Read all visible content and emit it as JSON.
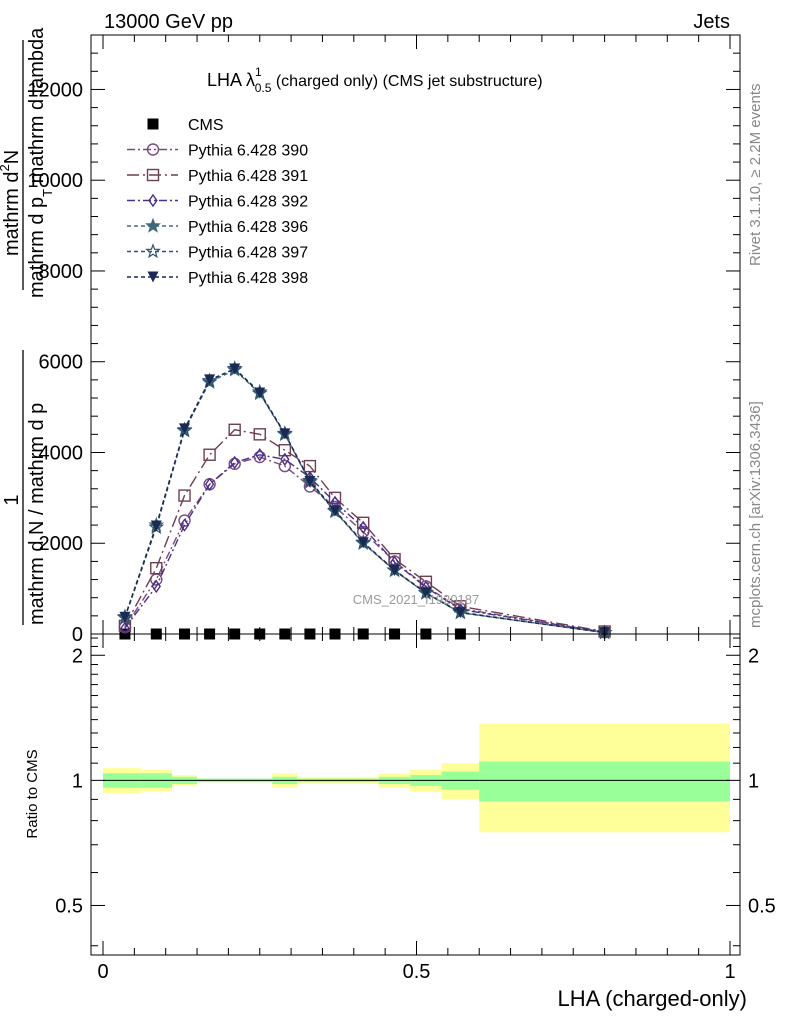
{
  "header": {
    "left": "13000 GeV pp",
    "right": "Jets"
  },
  "side_text": {
    "rivet": "Rivet 3.1.10, ≥ 2.2M events",
    "mcplots": "mcplots.cern.ch [arXiv:1306.3436]"
  },
  "watermark": "CMS_2021_I1920187",
  "chart_data": [
    {
      "type": "line",
      "panel": "main",
      "title": {
        "main": "LHA λ",
        "sup": "1",
        "sub": "0.5",
        "rest": " (charged only) (CMS jet substructure)"
      },
      "ylabel": "1 / mathrm d N / mathrm d p_T mathrm d^2N / mathrm d p_T mathrm d lambda",
      "ylabel_parts": {
        "numerator": "1",
        "denominator": "mathrm d N / mathrm d p",
        "big_top": "mathrm d",
        "big_top_sup": "2",
        "big_top_rest": "N",
        "big_bottom": "mathrm d p",
        "big_bottom_sub": "T",
        "big_bottom_rest": " mathrm d lambda"
      },
      "xlim": [
        0,
        1
      ],
      "ylim": [
        0,
        13200
      ],
      "yticks": [
        0,
        2000,
        4000,
        6000,
        8000,
        10000,
        12000
      ],
      "ytick_labels": [
        "0",
        "2000",
        "4000",
        "6000",
        "8000",
        "10000",
        "12000"
      ],
      "legend_position": "top-left",
      "series": [
        {
          "name": "CMS",
          "color": "#000000",
          "marker": "square-filled",
          "x": [
            0.035,
            0.085,
            0.13,
            0.17,
            0.21,
            0.25,
            0.29,
            0.33,
            0.37,
            0.415,
            0.465,
            0.515,
            0.57
          ],
          "values": [
            0,
            0,
            0,
            0,
            0,
            0,
            0,
            0,
            0,
            0,
            0,
            0,
            0
          ]
        },
        {
          "name": "Pythia 6.428 390",
          "color": "#7a4a82",
          "marker": "circle-open",
          "dash": "8,3,2,3",
          "x": [
            0.035,
            0.085,
            0.13,
            0.17,
            0.21,
            0.25,
            0.29,
            0.33,
            0.37,
            0.415,
            0.465,
            0.515,
            0.57,
            0.8
          ],
          "values": [
            150,
            1200,
            2500,
            3300,
            3750,
            3900,
            3700,
            3250,
            2800,
            2250,
            1600,
            1050,
            560,
            40
          ]
        },
        {
          "name": "Pythia 6.428 391",
          "color": "#6e3f4f",
          "marker": "square-open",
          "dash": "12,4,2,4",
          "x": [
            0.035,
            0.085,
            0.13,
            0.17,
            0.21,
            0.25,
            0.29,
            0.33,
            0.37,
            0.415,
            0.465,
            0.515,
            0.57,
            0.8
          ],
          "values": [
            180,
            1450,
            3050,
            3950,
            4500,
            4400,
            4050,
            3700,
            3000,
            2450,
            1650,
            1150,
            610,
            55
          ]
        },
        {
          "name": "Pythia 6.428 392",
          "color": "#4b2f8f",
          "marker": "diamond-open",
          "dash": "8,3,2,3",
          "x": [
            0.035,
            0.085,
            0.13,
            0.17,
            0.21,
            0.25,
            0.29,
            0.33,
            0.37,
            0.415,
            0.465,
            0.515,
            0.57,
            0.8
          ],
          "values": [
            130,
            1050,
            2400,
            3300,
            3780,
            3950,
            3850,
            3450,
            2900,
            2350,
            1580,
            1030,
            540,
            40
          ]
        },
        {
          "name": "Pythia 6.428 396",
          "color": "#3e6a78",
          "marker": "star-filled",
          "dash": "4,3",
          "x": [
            0.035,
            0.085,
            0.13,
            0.17,
            0.21,
            0.25,
            0.29,
            0.33,
            0.37,
            0.415,
            0.465,
            0.515,
            0.57,
            0.8
          ],
          "values": [
            380,
            2400,
            4500,
            5550,
            5820,
            5300,
            4400,
            3350,
            2700,
            2000,
            1400,
            900,
            470,
            30
          ]
        },
        {
          "name": "Pythia 6.428 397",
          "color": "#2e5470",
          "marker": "star-open",
          "dash": "4,3",
          "x": [
            0.035,
            0.085,
            0.13,
            0.17,
            0.21,
            0.25,
            0.29,
            0.33,
            0.37,
            0.415,
            0.465,
            0.515,
            0.57,
            0.8
          ],
          "values": [
            360,
            2350,
            4480,
            5580,
            5850,
            5330,
            4420,
            3380,
            2720,
            2020,
            1410,
            910,
            480,
            30
          ]
        },
        {
          "name": "Pythia 6.428 398",
          "color": "#1b2a55",
          "marker": "triangle-down-filled",
          "dash": "4,3",
          "x": [
            0.035,
            0.085,
            0.13,
            0.17,
            0.21,
            0.25,
            0.29,
            0.33,
            0.37,
            0.415,
            0.465,
            0.515,
            0.57,
            0.8
          ],
          "values": [
            370,
            2380,
            4520,
            5600,
            5840,
            5310,
            4410,
            3360,
            2710,
            2010,
            1400,
            900,
            470,
            30
          ]
        }
      ]
    },
    {
      "type": "area",
      "panel": "ratio",
      "ylabel": "Ratio to CMS",
      "xlabel": "LHA (charged-only)",
      "xlim": [
        0,
        1
      ],
      "ylim": [
        0.38,
        2.25
      ],
      "yscale": "log",
      "xticks": [
        0,
        0.5,
        1
      ],
      "xtick_labels": [
        "0",
        "0.5",
        "1"
      ],
      "yticks": [
        0.5,
        1,
        2
      ],
      "ytick_labels": [
        "0.5",
        "1",
        "2"
      ],
      "reference_line": 1,
      "bands": {
        "edges": [
          0,
          0.06,
          0.11,
          0.15,
          0.19,
          0.23,
          0.27,
          0.31,
          0.35,
          0.39,
          0.44,
          0.49,
          0.54,
          0.6,
          1
        ],
        "inner_color": "#99ff99",
        "outer_color": "#ffff99",
        "inner_low": [
          0.96,
          0.96,
          0.98,
          0.99,
          0.99,
          0.99,
          0.98,
          0.99,
          0.99,
          0.99,
          0.98,
          0.97,
          0.95,
          0.89
        ],
        "inner_high": [
          1.04,
          1.04,
          1.02,
          1.01,
          1.01,
          1.01,
          1.02,
          1.01,
          1.01,
          1.01,
          1.02,
          1.03,
          1.05,
          1.11
        ],
        "outer_low": [
          0.93,
          0.94,
          0.97,
          0.99,
          0.99,
          0.99,
          0.96,
          0.98,
          0.98,
          0.98,
          0.96,
          0.94,
          0.9,
          0.75
        ],
        "outer_high": [
          1.07,
          1.06,
          1.03,
          1.01,
          1.01,
          1.01,
          1.04,
          1.02,
          1.02,
          1.02,
          1.04,
          1.06,
          1.1,
          1.37
        ]
      }
    }
  ]
}
